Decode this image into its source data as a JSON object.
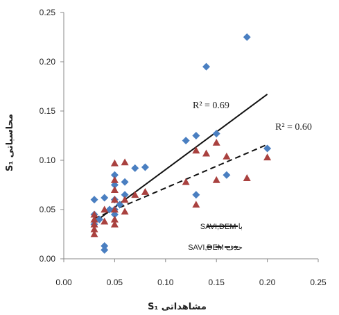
{
  "chart_data": {
    "type": "scatter",
    "title": "",
    "xlabel": "مشاهداتی S₁",
    "ylabel": "محاسباتی S₁",
    "xlim": [
      0,
      0.25
    ],
    "ylim": [
      0,
      0.25
    ],
    "x_ticks": [
      "0.00",
      "0.05",
      "0.10",
      "0.15",
      "0.20",
      "0.25"
    ],
    "y_ticks": [
      "0.00",
      "0.05",
      "0.10",
      "0.15",
      "0.20",
      "0.25"
    ],
    "grid": false,
    "legend_position": "bottom-right",
    "series": [
      {
        "name": "با SAVI,DEM",
        "marker": "diamond",
        "color": "#4a7fc1",
        "line_style": "solid",
        "trendline": {
          "x": [
            0.03,
            0.2
          ],
          "y": [
            0.037,
            0.167
          ]
        },
        "r2_label": "R² = 0.69",
        "points": [
          [
            0.03,
            0.06
          ],
          [
            0.03,
            0.045
          ],
          [
            0.03,
            0.035
          ],
          [
            0.035,
            0.04
          ],
          [
            0.04,
            0.062
          ],
          [
            0.04,
            0.013
          ],
          [
            0.04,
            0.009
          ],
          [
            0.045,
            0.05
          ],
          [
            0.05,
            0.085
          ],
          [
            0.05,
            0.075
          ],
          [
            0.05,
            0.06
          ],
          [
            0.05,
            0.05
          ],
          [
            0.05,
            0.045
          ],
          [
            0.055,
            0.055
          ],
          [
            0.06,
            0.078
          ],
          [
            0.06,
            0.065
          ],
          [
            0.07,
            0.092
          ],
          [
            0.08,
            0.093
          ],
          [
            0.12,
            0.12
          ],
          [
            0.13,
            0.125
          ],
          [
            0.13,
            0.065
          ],
          [
            0.14,
            0.195
          ],
          [
            0.15,
            0.127
          ],
          [
            0.16,
            0.085
          ],
          [
            0.18,
            0.225
          ],
          [
            0.2,
            0.112
          ]
        ]
      },
      {
        "name": "حذف SAVI,DEM",
        "marker": "triangle",
        "color": "#a9413f",
        "line_style": "dashed",
        "trendline": {
          "x": [
            0.03,
            0.2
          ],
          "y": [
            0.041,
            0.116
          ]
        },
        "r2_label": "R² = 0.60",
        "points": [
          [
            0.03,
            0.045
          ],
          [
            0.03,
            0.04
          ],
          [
            0.03,
            0.035
          ],
          [
            0.03,
            0.03
          ],
          [
            0.03,
            0.025
          ],
          [
            0.04,
            0.038
          ],
          [
            0.04,
            0.05
          ],
          [
            0.05,
            0.097
          ],
          [
            0.05,
            0.08
          ],
          [
            0.05,
            0.07
          ],
          [
            0.05,
            0.06
          ],
          [
            0.05,
            0.05
          ],
          [
            0.05,
            0.04
          ],
          [
            0.05,
            0.035
          ],
          [
            0.06,
            0.098
          ],
          [
            0.06,
            0.06
          ],
          [
            0.06,
            0.048
          ],
          [
            0.07,
            0.065
          ],
          [
            0.08,
            0.068
          ],
          [
            0.12,
            0.078
          ],
          [
            0.13,
            0.11
          ],
          [
            0.13,
            0.055
          ],
          [
            0.14,
            0.107
          ],
          [
            0.15,
            0.118
          ],
          [
            0.15,
            0.08
          ],
          [
            0.16,
            0.104
          ],
          [
            0.18,
            0.082
          ],
          [
            0.2,
            0.103
          ]
        ]
      }
    ]
  }
}
